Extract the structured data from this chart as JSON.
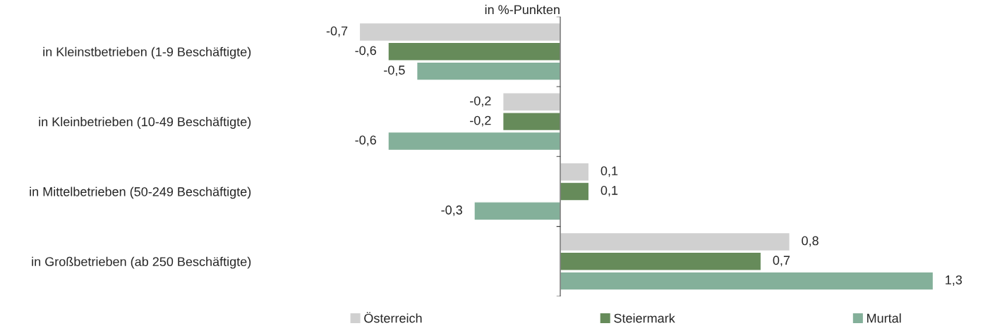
{
  "chart_data": {
    "type": "bar",
    "orientation": "horizontal",
    "title": "in %-Punkten",
    "categories": [
      "in Kleinstbetrieben (1-9 Beschäftigte)",
      "in Kleinbetrieben (10-49 Beschäftigte)",
      "in Mittelbetrieben (50-249 Beschäftigte)",
      "in Großbetrieben (ab 250 Beschäftigte)"
    ],
    "series": [
      {
        "name": "Österreich",
        "color": "#d0d0d0",
        "values": [
          -0.7,
          -0.2,
          0.1,
          0.8
        ],
        "value_labels": [
          "-0,7",
          "-0,2",
          "0,1",
          "0,8"
        ]
      },
      {
        "name": "Steiermark",
        "color": "#668b5a",
        "values": [
          -0.6,
          -0.2,
          0.1,
          0.7
        ],
        "value_labels": [
          "-0,6",
          "-0,2",
          "0,1",
          "0,7"
        ]
      },
      {
        "name": "Murtal",
        "color": "#84b09a",
        "values": [
          -0.5,
          -0.6,
          -0.3,
          1.3
        ],
        "value_labels": [
          "-0,5",
          "-0,6",
          "-0,3",
          "1,3"
        ]
      }
    ],
    "legend": "bottom",
    "tick_labels": "y"
  }
}
